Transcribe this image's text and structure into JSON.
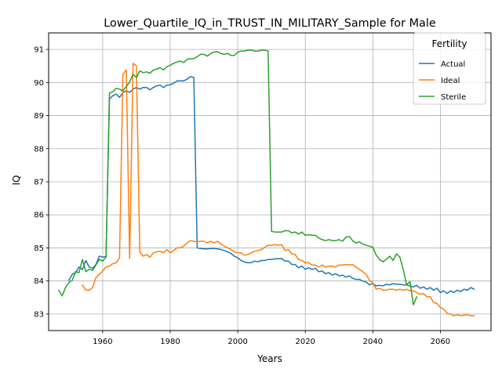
{
  "chart_data": {
    "type": "line",
    "title": "Lower_Quartile_IQ_in_TRUST_IN_MILITARY_Sample for Male",
    "xlabel": "Years",
    "ylabel": "IQ",
    "xlim": [
      1944,
      2075
    ],
    "ylim": [
      82.5,
      91.5
    ],
    "xticks": [
      1960,
      1980,
      2000,
      2020,
      2040,
      2060
    ],
    "yticks": [
      83,
      84,
      85,
      86,
      87,
      88,
      89,
      90,
      91
    ],
    "grid": true,
    "legend": {
      "title": "Fertility",
      "placement": "top-right"
    },
    "series": [
      {
        "name": "Actual",
        "color": "#1f77b4",
        "x": [
          1950,
          1951,
          1952,
          1953,
          1954,
          1955,
          1956,
          1957,
          1958,
          1959,
          1960,
          1961,
          1962,
          1963,
          1964,
          1965,
          1966,
          1967,
          1968,
          1969,
          1970,
          1971,
          1972,
          1973,
          1974,
          1975,
          1976,
          1977,
          1978,
          1979,
          1980,
          1981,
          1982,
          1983,
          1984,
          1985,
          1986,
          1987,
          1988,
          1989,
          1990,
          1991,
          1992,
          1993,
          1994,
          1995,
          1996,
          1997,
          1998,
          1999,
          2000,
          2001,
          2002,
          2003,
          2004,
          2005,
          2006,
          2007,
          2008,
          2009,
          2010,
          2011,
          2012,
          2013,
          2014,
          2015,
          2016,
          2017,
          2018,
          2019,
          2020,
          2021,
          2022,
          2023,
          2024,
          2025,
          2026,
          2027,
          2028,
          2029,
          2030,
          2031,
          2032,
          2033,
          2034,
          2035,
          2036,
          2037,
          2038,
          2039,
          2040,
          2041,
          2042,
          2043,
          2044,
          2045,
          2046,
          2047,
          2048,
          2049,
          2050,
          2051,
          2052,
          2053,
          2054,
          2055,
          2056,
          2057,
          2058,
          2059,
          2060,
          2061,
          2062,
          2063,
          2064,
          2065,
          2066,
          2067,
          2068,
          2069,
          2070
        ],
        "y": [
          84.02,
          84.2,
          84.25,
          84.42,
          84.35,
          84.62,
          84.42,
          84.38,
          84.5,
          84.75,
          84.72,
          84.75,
          89.5,
          89.6,
          89.65,
          89.55,
          89.7,
          89.75,
          89.7,
          89.8,
          89.85,
          89.8,
          89.85,
          89.85,
          89.78,
          89.85,
          89.9,
          89.92,
          89.85,
          89.92,
          89.93,
          89.98,
          90.05,
          90.05,
          90.05,
          90.1,
          90.18,
          90.15,
          85.0,
          84.98,
          84.97,
          84.97,
          84.98,
          84.98,
          84.97,
          84.95,
          84.92,
          84.88,
          84.83,
          84.75,
          84.7,
          84.62,
          84.57,
          84.55,
          84.55,
          84.6,
          84.58,
          84.62,
          84.62,
          84.65,
          84.65,
          84.67,
          84.67,
          84.68,
          84.6,
          84.6,
          84.5,
          84.5,
          84.4,
          84.45,
          84.35,
          84.4,
          84.35,
          84.38,
          84.28,
          84.3,
          84.22,
          84.25,
          84.18,
          84.22,
          84.15,
          84.18,
          84.12,
          84.15,
          84.08,
          84.05,
          84.05,
          84.0,
          83.97,
          83.88,
          83.92,
          83.85,
          83.87,
          83.85,
          83.9,
          83.88,
          83.92,
          83.9,
          83.9,
          83.88,
          83.88,
          83.85,
          83.82,
          83.87,
          83.78,
          83.82,
          83.75,
          83.8,
          83.72,
          83.78,
          83.65,
          83.7,
          83.62,
          83.7,
          83.65,
          83.72,
          83.68,
          83.75,
          83.72,
          83.8,
          83.75
        ]
      },
      {
        "name": "Ideal",
        "color": "#ff7f0e",
        "x": [
          1954,
          1955,
          1956,
          1957,
          1958,
          1959,
          1960,
          1961,
          1962,
          1963,
          1964,
          1965,
          1966,
          1967,
          1968,
          1969,
          1970,
          1971,
          1972,
          1973,
          1974,
          1975,
          1976,
          1977,
          1978,
          1979,
          1980,
          1981,
          1982,
          1983,
          1984,
          1985,
          1986,
          1987,
          1988,
          1989,
          1990,
          1991,
          1992,
          1993,
          1994,
          1995,
          1996,
          1997,
          1998,
          1999,
          2000,
          2001,
          2002,
          2003,
          2004,
          2005,
          2006,
          2007,
          2008,
          2009,
          2010,
          2011,
          2012,
          2013,
          2014,
          2015,
          2016,
          2017,
          2018,
          2019,
          2020,
          2021,
          2022,
          2023,
          2024,
          2025,
          2026,
          2027,
          2028,
          2029,
          2030,
          2031,
          2032,
          2033,
          2034,
          2035,
          2036,
          2037,
          2038,
          2039,
          2040,
          2041,
          2042,
          2043,
          2044,
          2045,
          2046,
          2047,
          2048,
          2049,
          2050,
          2051,
          2052,
          2053,
          2054,
          2055,
          2056,
          2057,
          2058,
          2059,
          2060,
          2061,
          2062,
          2063,
          2064,
          2065,
          2066,
          2067,
          2068,
          2069,
          2070
        ],
        "y": [
          83.88,
          83.72,
          83.72,
          83.8,
          84.1,
          84.2,
          84.3,
          84.42,
          84.45,
          84.52,
          84.55,
          84.7,
          90.25,
          90.38,
          84.68,
          90.58,
          90.5,
          84.88,
          84.75,
          84.8,
          84.72,
          84.85,
          84.88,
          84.9,
          84.85,
          84.95,
          84.85,
          84.92,
          85.0,
          85.0,
          85.05,
          85.15,
          85.22,
          85.2,
          85.18,
          85.2,
          85.2,
          85.15,
          85.2,
          85.15,
          85.2,
          85.12,
          85.05,
          85.0,
          84.95,
          84.88,
          84.85,
          84.85,
          84.78,
          84.8,
          84.85,
          84.9,
          84.92,
          84.95,
          85.02,
          85.08,
          85.08,
          85.1,
          85.08,
          85.1,
          84.92,
          84.95,
          84.82,
          84.8,
          84.65,
          84.62,
          84.55,
          84.55,
          84.48,
          84.48,
          84.42,
          84.48,
          84.42,
          84.45,
          84.45,
          84.42,
          84.48,
          84.48,
          84.5,
          84.48,
          84.5,
          84.42,
          84.35,
          84.28,
          84.2,
          84.02,
          83.95,
          83.75,
          83.78,
          83.72,
          83.72,
          83.75,
          83.75,
          83.72,
          83.75,
          83.72,
          83.75,
          83.7,
          83.7,
          83.65,
          83.6,
          83.62,
          83.52,
          83.52,
          83.35,
          83.32,
          83.2,
          83.15,
          83.02,
          83.0,
          82.95,
          82.98,
          82.95,
          82.97,
          82.98,
          82.95,
          82.95
        ]
      },
      {
        "name": "Sterile",
        "color": "#2ca02c",
        "x": [
          1947,
          1948,
          1949,
          1950,
          1951,
          1952,
          1953,
          1954,
          1955,
          1956,
          1957,
          1958,
          1959,
          1960,
          1961,
          1962,
          1963,
          1964,
          1965,
          1966,
          1967,
          1968,
          1969,
          1970,
          1971,
          1972,
          1973,
          1974,
          1975,
          1976,
          1977,
          1978,
          1979,
          1980,
          1981,
          1982,
          1983,
          1984,
          1985,
          1986,
          1987,
          1988,
          1989,
          1990,
          1991,
          1992,
          1993,
          1994,
          1995,
          1996,
          1997,
          1998,
          1999,
          2000,
          2001,
          2002,
          2003,
          2004,
          2005,
          2006,
          2007,
          2008,
          2009,
          2010,
          2011,
          2012,
          2013,
          2014,
          2015,
          2016,
          2017,
          2018,
          2019,
          2020,
          2021,
          2022,
          2023,
          2024,
          2025,
          2026,
          2027,
          2028,
          2029,
          2030,
          2031,
          2032,
          2033,
          2034,
          2035,
          2036,
          2037,
          2038,
          2039,
          2040,
          2041,
          2042,
          2043,
          2044,
          2045,
          2046,
          2047,
          2048,
          2049,
          2050,
          2051,
          2052,
          2053
        ],
        "y": [
          83.72,
          83.55,
          83.8,
          83.95,
          84.02,
          84.28,
          84.25,
          84.65,
          84.28,
          84.35,
          84.32,
          84.48,
          84.65,
          84.6,
          84.72,
          89.68,
          89.72,
          89.82,
          89.8,
          89.75,
          89.88,
          90.02,
          90.25,
          90.15,
          90.35,
          90.3,
          90.32,
          90.28,
          90.38,
          90.4,
          90.45,
          90.38,
          90.48,
          90.52,
          90.58,
          90.62,
          90.65,
          90.6,
          90.7,
          90.72,
          90.72,
          90.78,
          90.85,
          90.85,
          90.8,
          90.88,
          90.92,
          90.93,
          90.88,
          90.85,
          90.88,
          90.82,
          90.82,
          90.92,
          90.95,
          90.95,
          90.98,
          90.98,
          90.95,
          90.95,
          90.98,
          90.98,
          90.95,
          85.5,
          85.48,
          85.48,
          85.48,
          85.52,
          85.52,
          85.45,
          85.48,
          85.42,
          85.48,
          85.38,
          85.4,
          85.38,
          85.38,
          85.3,
          85.25,
          85.22,
          85.25,
          85.22,
          85.22,
          85.25,
          85.2,
          85.32,
          85.35,
          85.22,
          85.15,
          85.18,
          85.12,
          85.08,
          85.05,
          85.02,
          84.78,
          84.65,
          84.58,
          84.65,
          84.75,
          84.62,
          84.82,
          84.72,
          84.35,
          83.88,
          83.98,
          83.28,
          83.52
        ]
      }
    ]
  }
}
